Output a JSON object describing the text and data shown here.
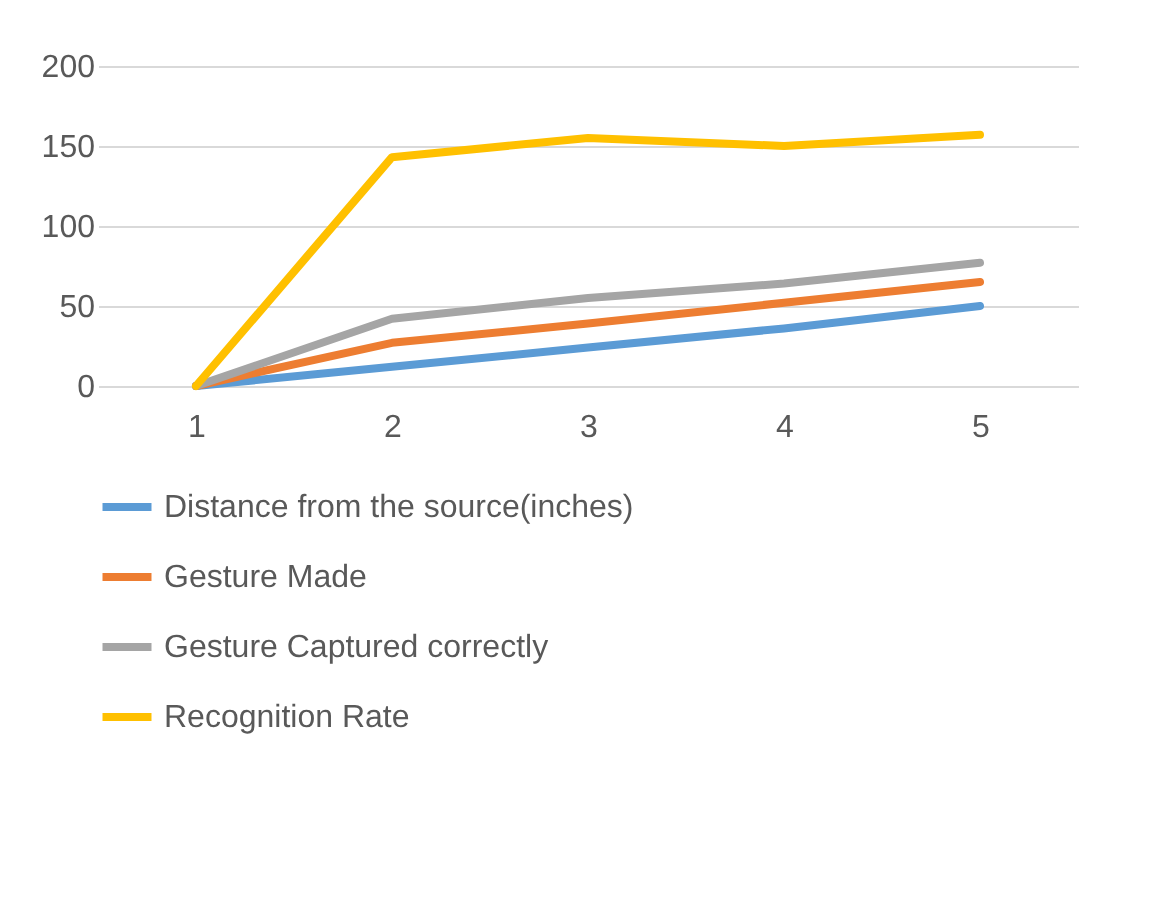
{
  "chart_data": {
    "type": "line",
    "categories": [
      "1",
      "2",
      "3",
      "4",
      "5"
    ],
    "series": [
      {
        "name": "Distance from the source(inches)",
        "color": "#5b9bd5",
        "values": [
          0,
          12,
          24,
          36,
          50
        ]
      },
      {
        "name": "Gesture Made",
        "color": "#ed7d31",
        "values": [
          0,
          27,
          39,
          52,
          65
        ]
      },
      {
        "name": "Gesture Captured correctly",
        "color": "#a5a5a5",
        "values": [
          0,
          42,
          55,
          64,
          77
        ]
      },
      {
        "name": "Recognition Rate",
        "color": "#ffc000",
        "values": [
          0,
          143,
          155,
          150,
          157
        ]
      }
    ],
    "ylim": [
      0,
      200
    ],
    "yticks": [
      0,
      50,
      100,
      150,
      200
    ],
    "grid": "y",
    "legend": "bottom",
    "marker": "none",
    "line_style": "solid"
  }
}
